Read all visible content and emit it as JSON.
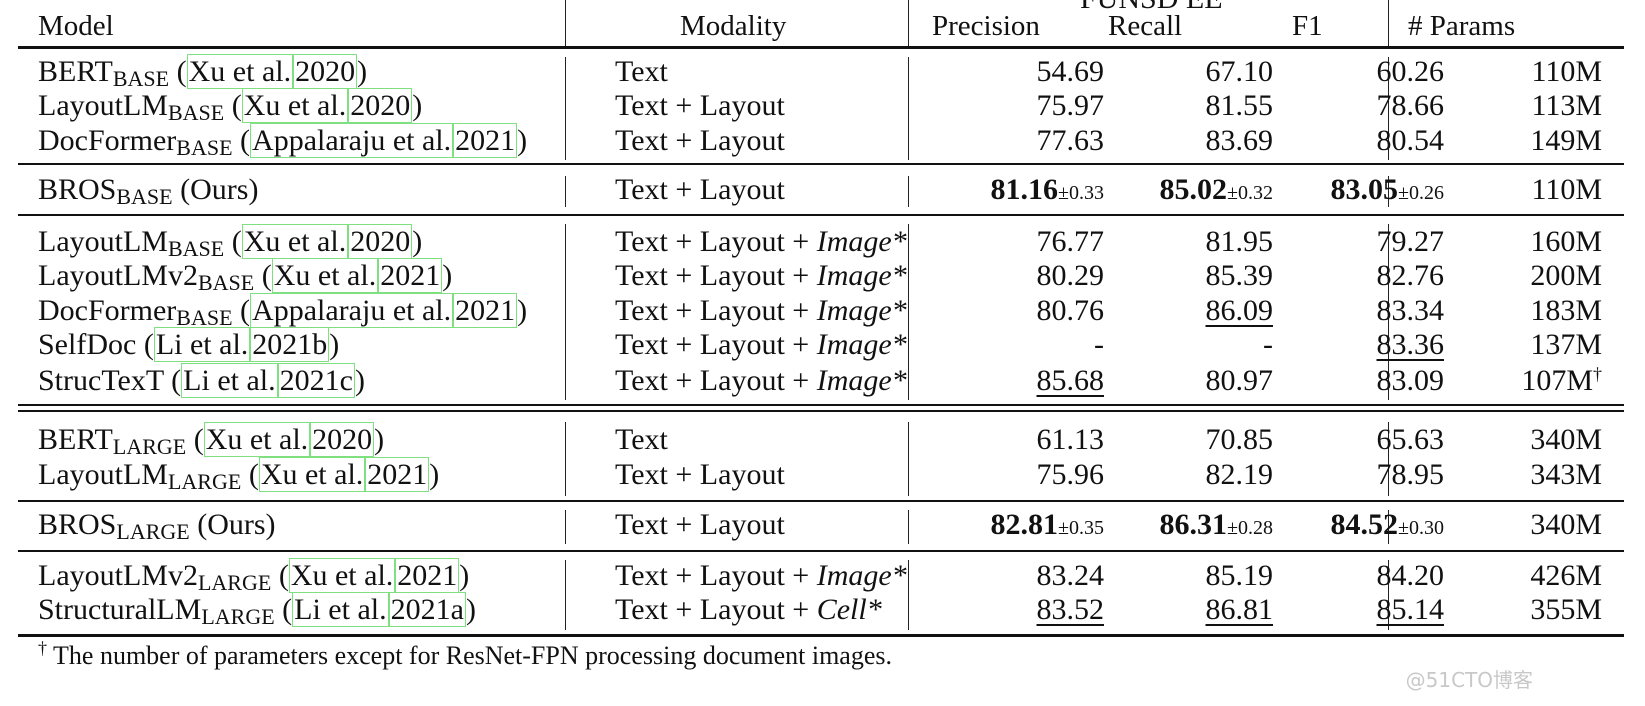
{
  "columns": {
    "model": "Model",
    "modality": "Modality",
    "dataset": "FUNSD EE",
    "precision": "Precision",
    "recall": "Recall",
    "f1": "F1",
    "params": "# Params"
  },
  "rows": [
    {
      "name": "BERT",
      "sub": "BASE",
      "cite": [
        "Xu et al.",
        "2020"
      ],
      "cite_close": ")",
      "modality": "Text",
      "mod_ital": "",
      "p": "54.69",
      "r": "67.10",
      "f": "60.26",
      "params": "110M"
    },
    {
      "name": "LayoutLM",
      "sub": "BASE",
      "cite": [
        "Xu et al.",
        "2020"
      ],
      "cite_close": ")",
      "modality": "Text + Layout",
      "mod_ital": "",
      "p": "75.97",
      "r": "81.55",
      "f": "78.66",
      "params": "113M"
    },
    {
      "name": "DocFormer",
      "sub": "BASE",
      "cite": [
        "Appalaraju et al.",
        "2021"
      ],
      "cite_close": ")",
      "modality": "Text + Layout",
      "mod_ital": "",
      "p": "77.63",
      "r": "83.69",
      "f": "80.54",
      "params": "149M"
    },
    {
      "name": "BROS",
      "sub": "BASE",
      "suffix": "(Ours)",
      "modality": "Text + Layout",
      "mod_ital": "",
      "p": "81.16",
      "p_pm": "±0.33",
      "r": "85.02",
      "r_pm": "±0.32",
      "f": "83.05",
      "f_pm": "±0.26",
      "params": "110M",
      "bold": true
    },
    {
      "name": "LayoutLM",
      "sub": "BASE",
      "cite": [
        "Xu et al.",
        "2020"
      ],
      "cite_close": ")",
      "modality": "Text + Layout + ",
      "mod_ital": "Image*",
      "p": "76.77",
      "r": "81.95",
      "f": "79.27",
      "params": "160M"
    },
    {
      "name": "LayoutLMv2",
      "sub": "BASE",
      "cite": [
        "Xu et al.",
        "2021"
      ],
      "cite_close": ")",
      "modality": "Text + Layout + ",
      "mod_ital": "Image*",
      "p": "80.29",
      "r": "85.39",
      "f": "82.76",
      "params": "200M"
    },
    {
      "name": "DocFormer",
      "sub": "BASE",
      "cite": [
        "Appalaraju et al.",
        "2021"
      ],
      "cite_close": ")",
      "modality": "Text + Layout + ",
      "mod_ital": "Image*",
      "p": "80.76",
      "r": "86.09",
      "r_u": true,
      "f": "83.34",
      "params": "183M"
    },
    {
      "name": "SelfDoc",
      "sub": "",
      "cite": [
        "Li et al.",
        "2021b"
      ],
      "cite_close": ")",
      "modality": "Text + Layout + ",
      "mod_ital": "Image*",
      "p": "-",
      "r": "-",
      "f": "83.36",
      "f_u": true,
      "params": "137M"
    },
    {
      "name": "StrucTexT",
      "sub": "",
      "cite": [
        "Li et al.",
        "2021c"
      ],
      "cite_close": ")",
      "modality": "Text + Layout + ",
      "mod_ital": "Image*",
      "p": "85.68",
      "p_u": true,
      "r": "80.97",
      "f": "83.09",
      "params": "107M",
      "dagger": "†"
    },
    {
      "name": "BERT",
      "sub": "LARGE",
      "cite": [
        "Xu et al.",
        "2020"
      ],
      "cite_close": ")",
      "modality": "Text",
      "mod_ital": "",
      "p": "61.13",
      "r": "70.85",
      "f": "65.63",
      "params": "340M"
    },
    {
      "name": "LayoutLM",
      "sub": "LARGE",
      "cite": [
        "Xu et al.",
        "2021"
      ],
      "cite_close": ")",
      "modality": "Text + Layout",
      "mod_ital": "",
      "p": "75.96",
      "r": "82.19",
      "f": "78.95",
      "params": "343M"
    },
    {
      "name": "BROS",
      "sub": "LARGE",
      "suffix": "(Ours)",
      "modality": "Text + Layout",
      "mod_ital": "",
      "p": "82.81",
      "p_pm": "±0.35",
      "r": "86.31",
      "r_pm": "±0.28",
      "f": "84.52",
      "f_pm": "±0.30",
      "params": "340M",
      "bold": true
    },
    {
      "name": "LayoutLMv2",
      "sub": "LARGE",
      "cite": [
        "Xu et al.",
        "2021"
      ],
      "cite_close": ")",
      "modality": "Text + Layout + ",
      "mod_ital": "Image*",
      "p": "83.24",
      "r": "85.19",
      "f": "84.20",
      "params": "426M"
    },
    {
      "name": "StructuralLM",
      "sub": "LARGE",
      "cite": [
        "Li et al.",
        "2021a"
      ],
      "cite_close": ")",
      "modality": "Text + Layout + ",
      "mod_ital": "Cell*",
      "p": "83.52",
      "p_u": true,
      "r": "86.81",
      "r_u": true,
      "f": "85.14",
      "f_u": true,
      "params": "355M"
    }
  ],
  "footnote": {
    "mark": "†",
    "text": "The number of parameters except for ResNet-FPN processing document images."
  },
  "watermark": "@51CTO博客"
}
